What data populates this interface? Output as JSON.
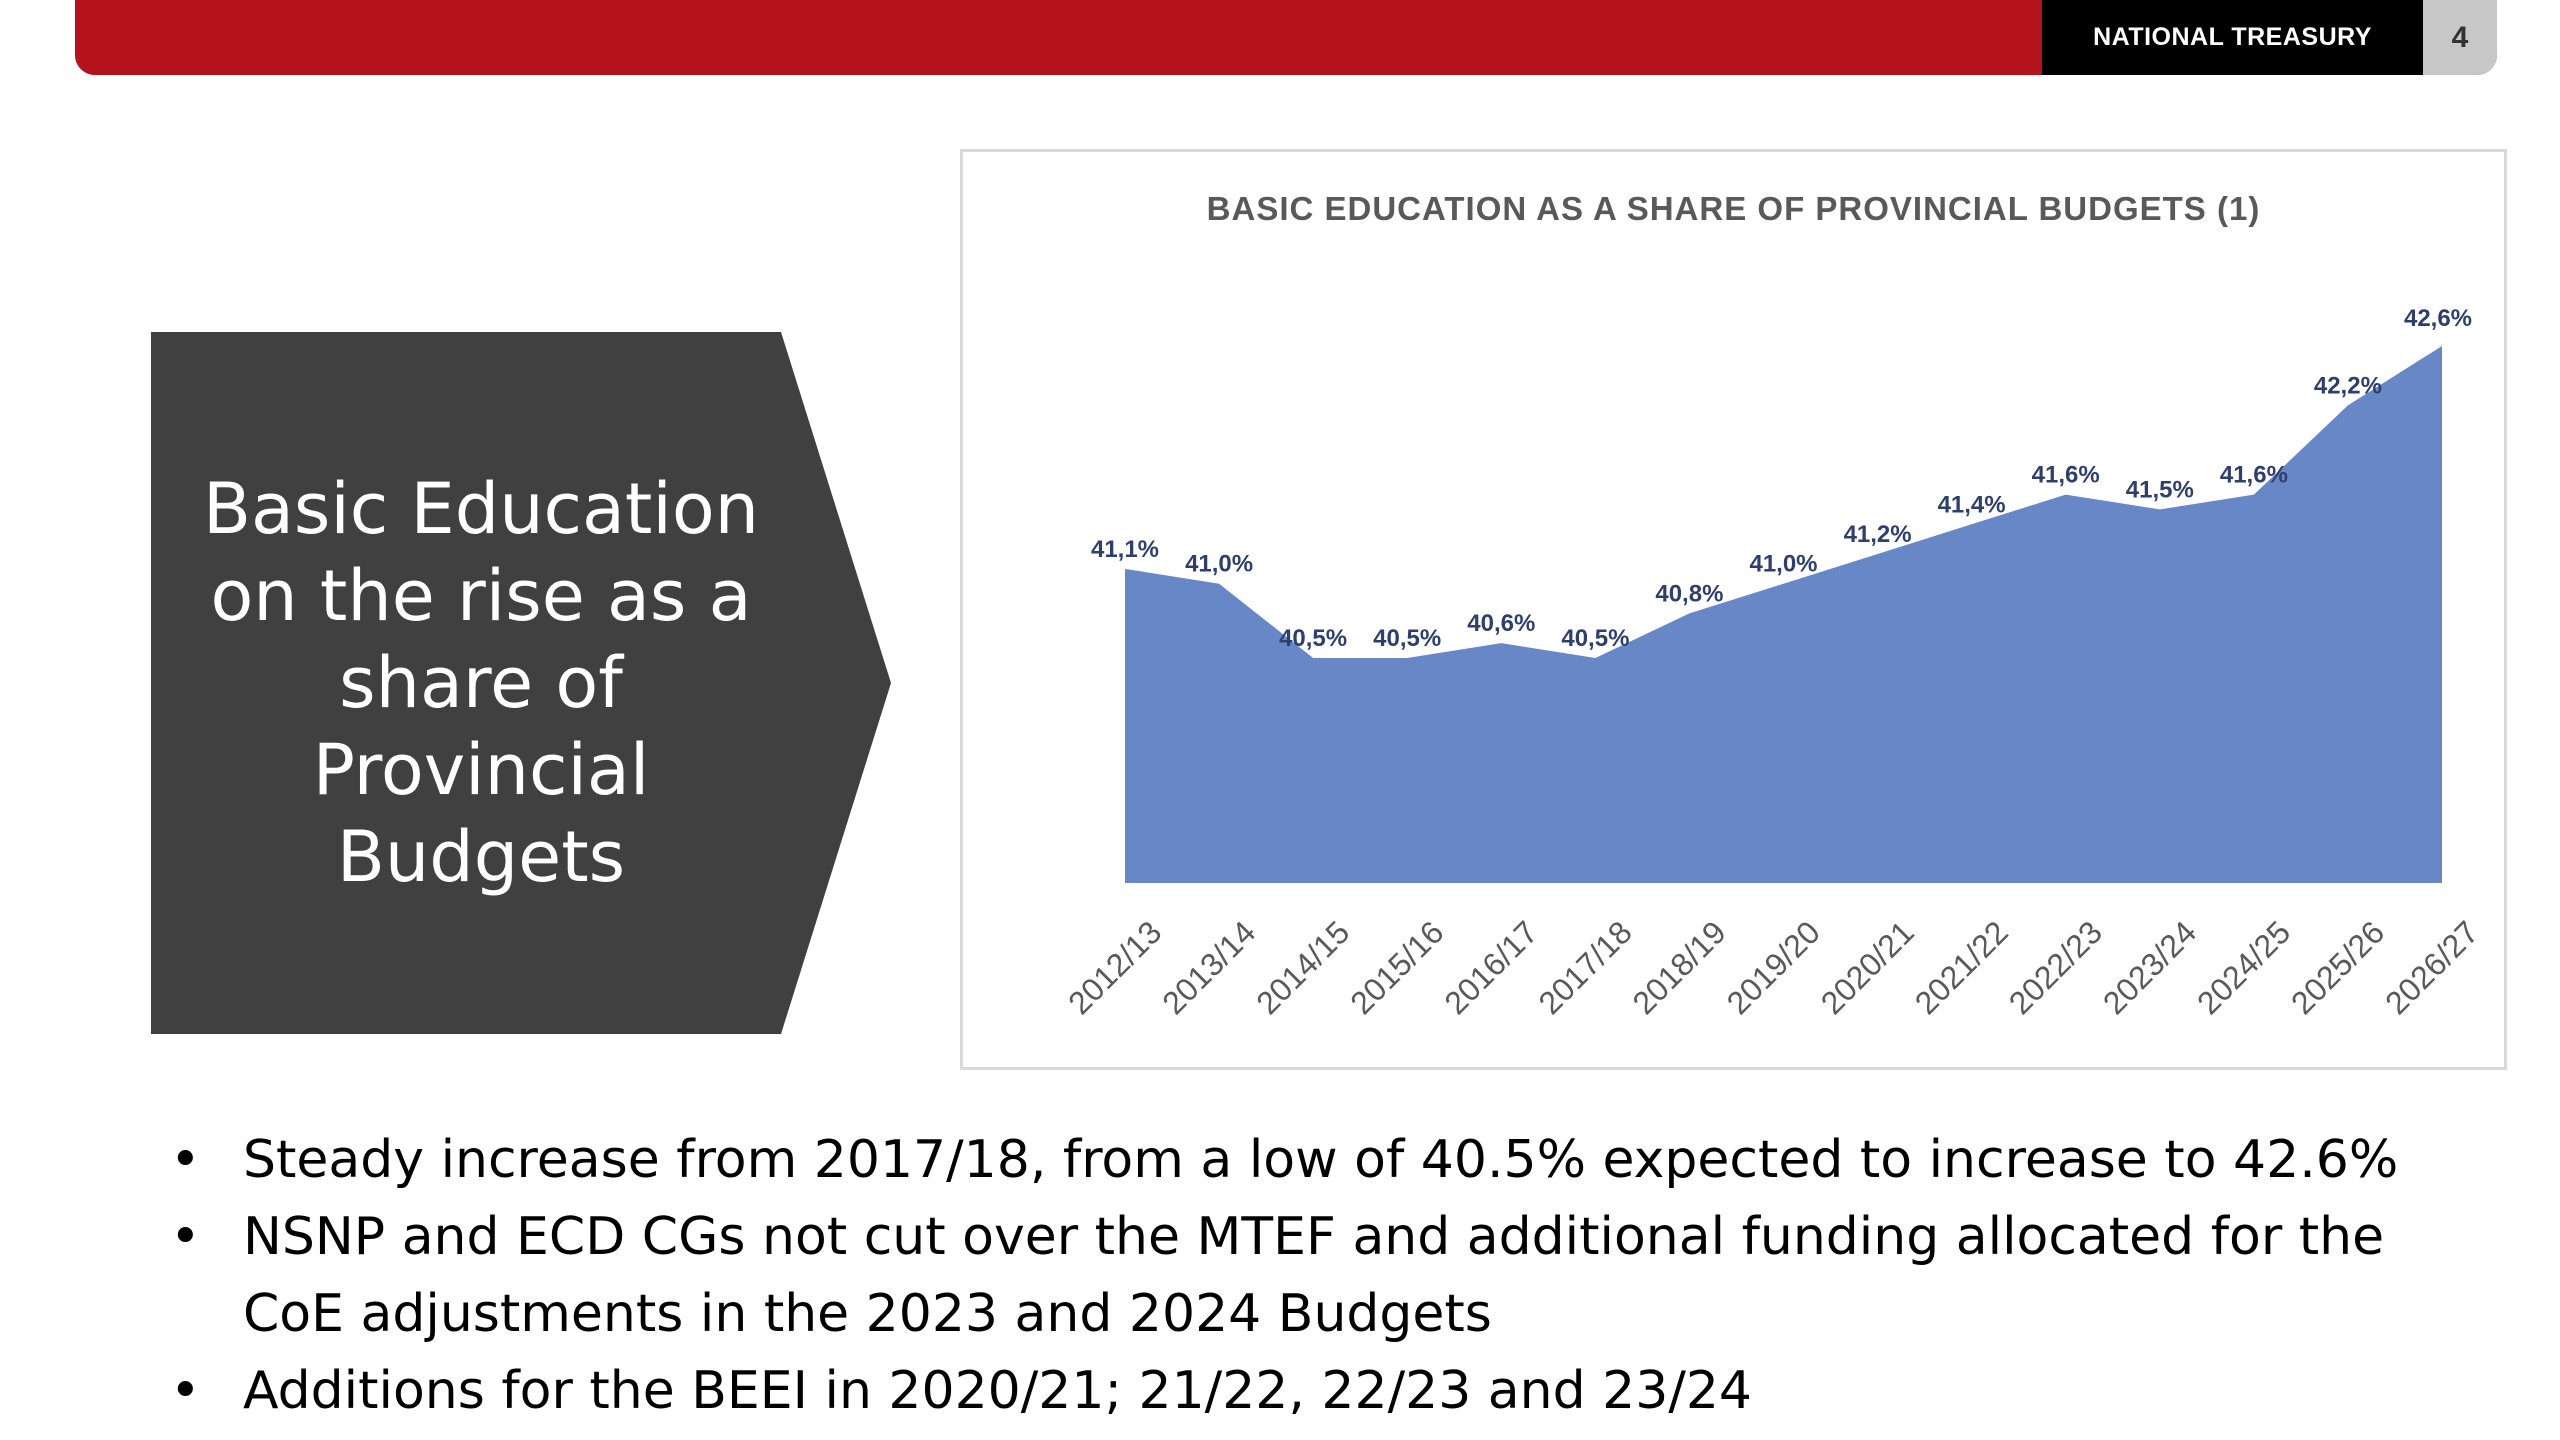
{
  "header": {
    "org_label": "NATIONAL TREASURY",
    "page_number": "4",
    "colors": {
      "red": "#b4121d",
      "black": "#000000",
      "grey": "#c7c7c7"
    }
  },
  "callout": {
    "text": "Basic Education on the rise as a share of Provincial Budgets",
    "color": "#404040"
  },
  "chart_data": {
    "type": "area",
    "title": "BASIC EDUCATION AS A SHARE OF PROVINCIAL BUDGETS (1)",
    "categories": [
      "2012/13",
      "2013/14",
      "2014/15",
      "2015/16",
      "2016/17",
      "2017/18",
      "2018/19",
      "2019/20",
      "2020/21",
      "2021/22",
      "2022/23",
      "2023/24",
      "2024/25",
      "2025/26",
      "2026/27"
    ],
    "values": [
      41.1,
      41.0,
      40.5,
      40.5,
      40.6,
      40.5,
      40.8,
      41.0,
      41.2,
      41.4,
      41.6,
      41.5,
      41.6,
      42.2,
      42.6
    ],
    "data_labels": [
      "41,1%",
      "41,0%",
      "40,5%",
      "40,5%",
      "40,6%",
      "40,5%",
      "40,8%",
      "41,0%",
      "41,2%",
      "41,4%",
      "41,6%",
      "41,5%",
      "41,6%",
      "42,2%",
      "42,6%"
    ],
    "fill_color": "#6787c6",
    "label_color": "#2e3f6e",
    "grid": false,
    "legend": "none"
  },
  "bullets": [
    "Steady increase from 2017/18, from a low of 40.5% expected to increase to 42.6%",
    "NSNP and ECD CGs not cut over the MTEF and additional funding allocated for the CoE adjustments in the 2023 and 2024 Budgets",
    "Additions for the BEEI in 2020/21; 21/22, 22/23 and 23/24"
  ]
}
